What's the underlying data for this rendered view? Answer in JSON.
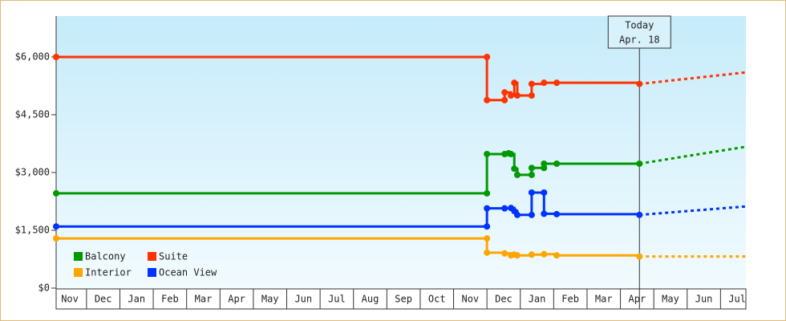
{
  "chart_data": {
    "type": "step-line",
    "xlim": [
      0,
      20.67
    ],
    "xticks": [
      {
        "value": 0.41,
        "label": "Nov"
      },
      {
        "value": 1.41,
        "label": "Dec"
      },
      {
        "value": 2.41,
        "label": "Jan"
      },
      {
        "value": 3.41,
        "label": "Feb"
      },
      {
        "value": 4.41,
        "label": "Mar"
      },
      {
        "value": 5.41,
        "label": "Apr"
      },
      {
        "value": 6.41,
        "label": "May"
      },
      {
        "value": 7.41,
        "label": "Jun"
      },
      {
        "value": 8.41,
        "label": "Jul"
      },
      {
        "value": 9.41,
        "label": "Aug"
      },
      {
        "value": 10.41,
        "label": "Sep"
      },
      {
        "value": 11.41,
        "label": "Oct"
      },
      {
        "value": 12.41,
        "label": "Nov"
      },
      {
        "value": 13.41,
        "label": "Dec"
      },
      {
        "value": 14.41,
        "label": "Jan"
      },
      {
        "value": 15.41,
        "label": "Feb"
      },
      {
        "value": 16.41,
        "label": "Mar"
      },
      {
        "value": 17.41,
        "label": "Apr"
      },
      {
        "value": 18.41,
        "label": "May"
      },
      {
        "value": 19.41,
        "label": "Jun"
      },
      {
        "value": 20.41,
        "label": "Jul"
      }
    ],
    "ylim": [
      0,
      7000
    ],
    "yticks": [
      {
        "value": 0,
        "label": "$0"
      },
      {
        "value": 1500,
        "label": "$1,500"
      },
      {
        "value": 3000,
        "label": "$3,000"
      },
      {
        "value": 4500,
        "label": "$4,500"
      },
      {
        "value": 6000,
        "label": "$6,000"
      }
    ],
    "legend": "bottom-left",
    "annotation": {
      "x": 17.48,
      "text": [
        "Today",
        "Apr. 18"
      ]
    },
    "series": [
      {
        "name": "Balcony",
        "color": "#009900",
        "x": [
          0,
          12.91,
          12.91,
          13.44,
          13.56,
          13.63,
          13.73,
          13.82,
          14.25,
          14.25,
          14.62,
          14.62,
          15.0,
          17.48
        ],
        "values": [
          2460,
          2460,
          3480,
          3480,
          3500,
          3480,
          3100,
          2940,
          2940,
          3120,
          3120,
          3230,
          3230,
          3230
        ],
        "forecast": {
          "x": [
            17.48,
            20.67
          ],
          "values": [
            3230,
            3670
          ]
        }
      },
      {
        "name": "Suite",
        "color": "#ff3300",
        "x": [
          0,
          12.91,
          12.91,
          13.44,
          13.44,
          13.63,
          13.73,
          13.82,
          14.25,
          14.25,
          14.62,
          15.0,
          17.48
        ],
        "values": [
          6000,
          6000,
          4880,
          4880,
          5080,
          5000,
          5330,
          5000,
          5000,
          5300,
          5330,
          5330,
          5300
        ],
        "forecast": {
          "x": [
            17.48,
            20.67
          ],
          "values": [
            5300,
            5600
          ]
        }
      },
      {
        "name": "Interior",
        "color": "#ffa500",
        "x": [
          0,
          12.91,
          12.91,
          13.44,
          13.63,
          13.73,
          13.82,
          14.25,
          14.62,
          15.0,
          17.48
        ],
        "values": [
          1290,
          1290,
          920,
          900,
          850,
          870,
          850,
          870,
          880,
          850,
          820
        ],
        "forecast": {
          "x": [
            17.48,
            20.67
          ],
          "values": [
            820,
            820
          ]
        }
      },
      {
        "name": "Ocean View",
        "color": "#0033ff",
        "x": [
          0,
          12.91,
          12.91,
          13.44,
          13.63,
          13.73,
          13.82,
          14.25,
          14.25,
          14.62,
          14.62,
          15.0,
          17.48
        ],
        "values": [
          1600,
          1600,
          2070,
          2070,
          2080,
          2000,
          1900,
          1900,
          2480,
          2480,
          1930,
          1920,
          1900
        ],
        "forecast": {
          "x": [
            17.48,
            20.67
          ],
          "values": [
            1900,
            2120
          ]
        }
      }
    ]
  }
}
